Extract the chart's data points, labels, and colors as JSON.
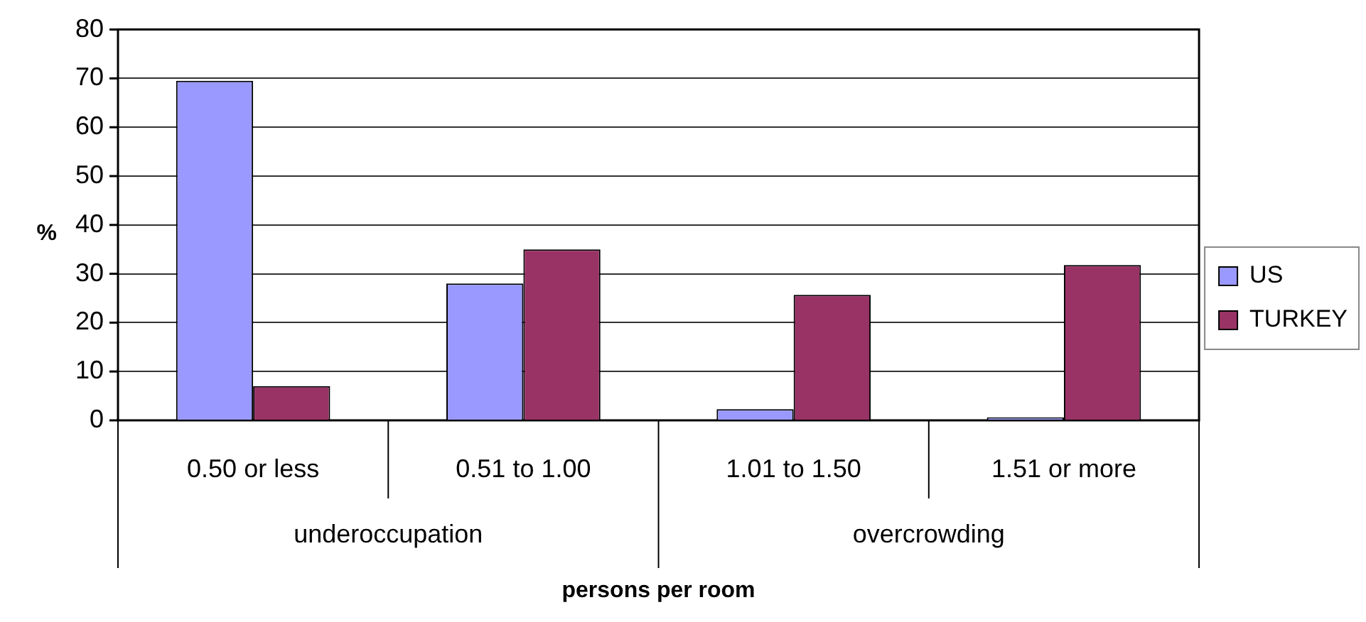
{
  "chart_data": {
    "type": "bar",
    "xlabel": "persons per room",
    "ylabel": "%",
    "categories": [
      "0.50 or less",
      "0.51 to 1.00",
      "1.01 to 1.50",
      "1.51 or more"
    ],
    "series": [
      {
        "name": "US",
        "color": "#9999ff",
        "values": [
          69.5,
          28,
          2.3,
          0.6
        ]
      },
      {
        "name": "TURKEY",
        "color": "#993366",
        "values": [
          7,
          35,
          25.7,
          31.8
        ]
      }
    ],
    "ylim": [
      0,
      80
    ],
    "yticks": [
      0,
      10,
      20,
      30,
      40,
      50,
      60,
      70,
      80
    ],
    "grid": "y",
    "legend": "right",
    "annotations": [
      "underoccupation",
      "overcrowding"
    ]
  }
}
